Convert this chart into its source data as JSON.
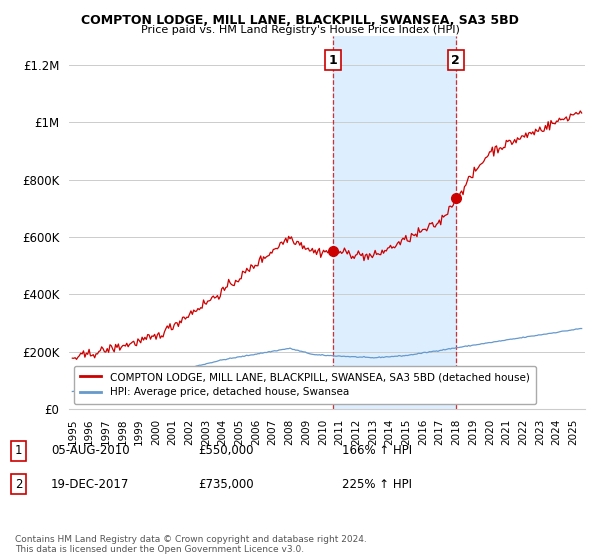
{
  "title": "COMPTON LODGE, MILL LANE, BLACKPILL, SWANSEA, SA3 5BD",
  "subtitle": "Price paid vs. HM Land Registry's House Price Index (HPI)",
  "ylabel_ticks": [
    "£0",
    "£200K",
    "£400K",
    "£600K",
    "£800K",
    "£1M",
    "£1.2M"
  ],
  "ytick_vals": [
    0,
    200000,
    400000,
    600000,
    800000,
    1000000,
    1200000
  ],
  "ylim": [
    0,
    1300000
  ],
  "xlim_start": 1994.8,
  "xlim_end": 2025.7,
  "sale1_x": 2010.59,
  "sale1_y": 550000,
  "sale1_label": "1",
  "sale2_x": 2017.96,
  "sale2_y": 735000,
  "sale2_label": "2",
  "legend_line1": "COMPTON LODGE, MILL LANE, BLACKPILL, SWANSEA, SA3 5BD (detached house)",
  "legend_line2": "HPI: Average price, detached house, Swansea",
  "annotation1_date": "05-AUG-2010",
  "annotation1_price": "£550,000",
  "annotation1_hpi": "166% ↑ HPI",
  "annotation2_date": "19-DEC-2017",
  "annotation2_price": "£735,000",
  "annotation2_hpi": "225% ↑ HPI",
  "footnote": "Contains HM Land Registry data © Crown copyright and database right 2024.\nThis data is licensed under the Open Government Licence v3.0.",
  "red_color": "#cc0000",
  "blue_color": "#6699cc",
  "shaded_color": "#ddeeff",
  "bg_color": "#ffffff",
  "grid_color": "#cccccc"
}
